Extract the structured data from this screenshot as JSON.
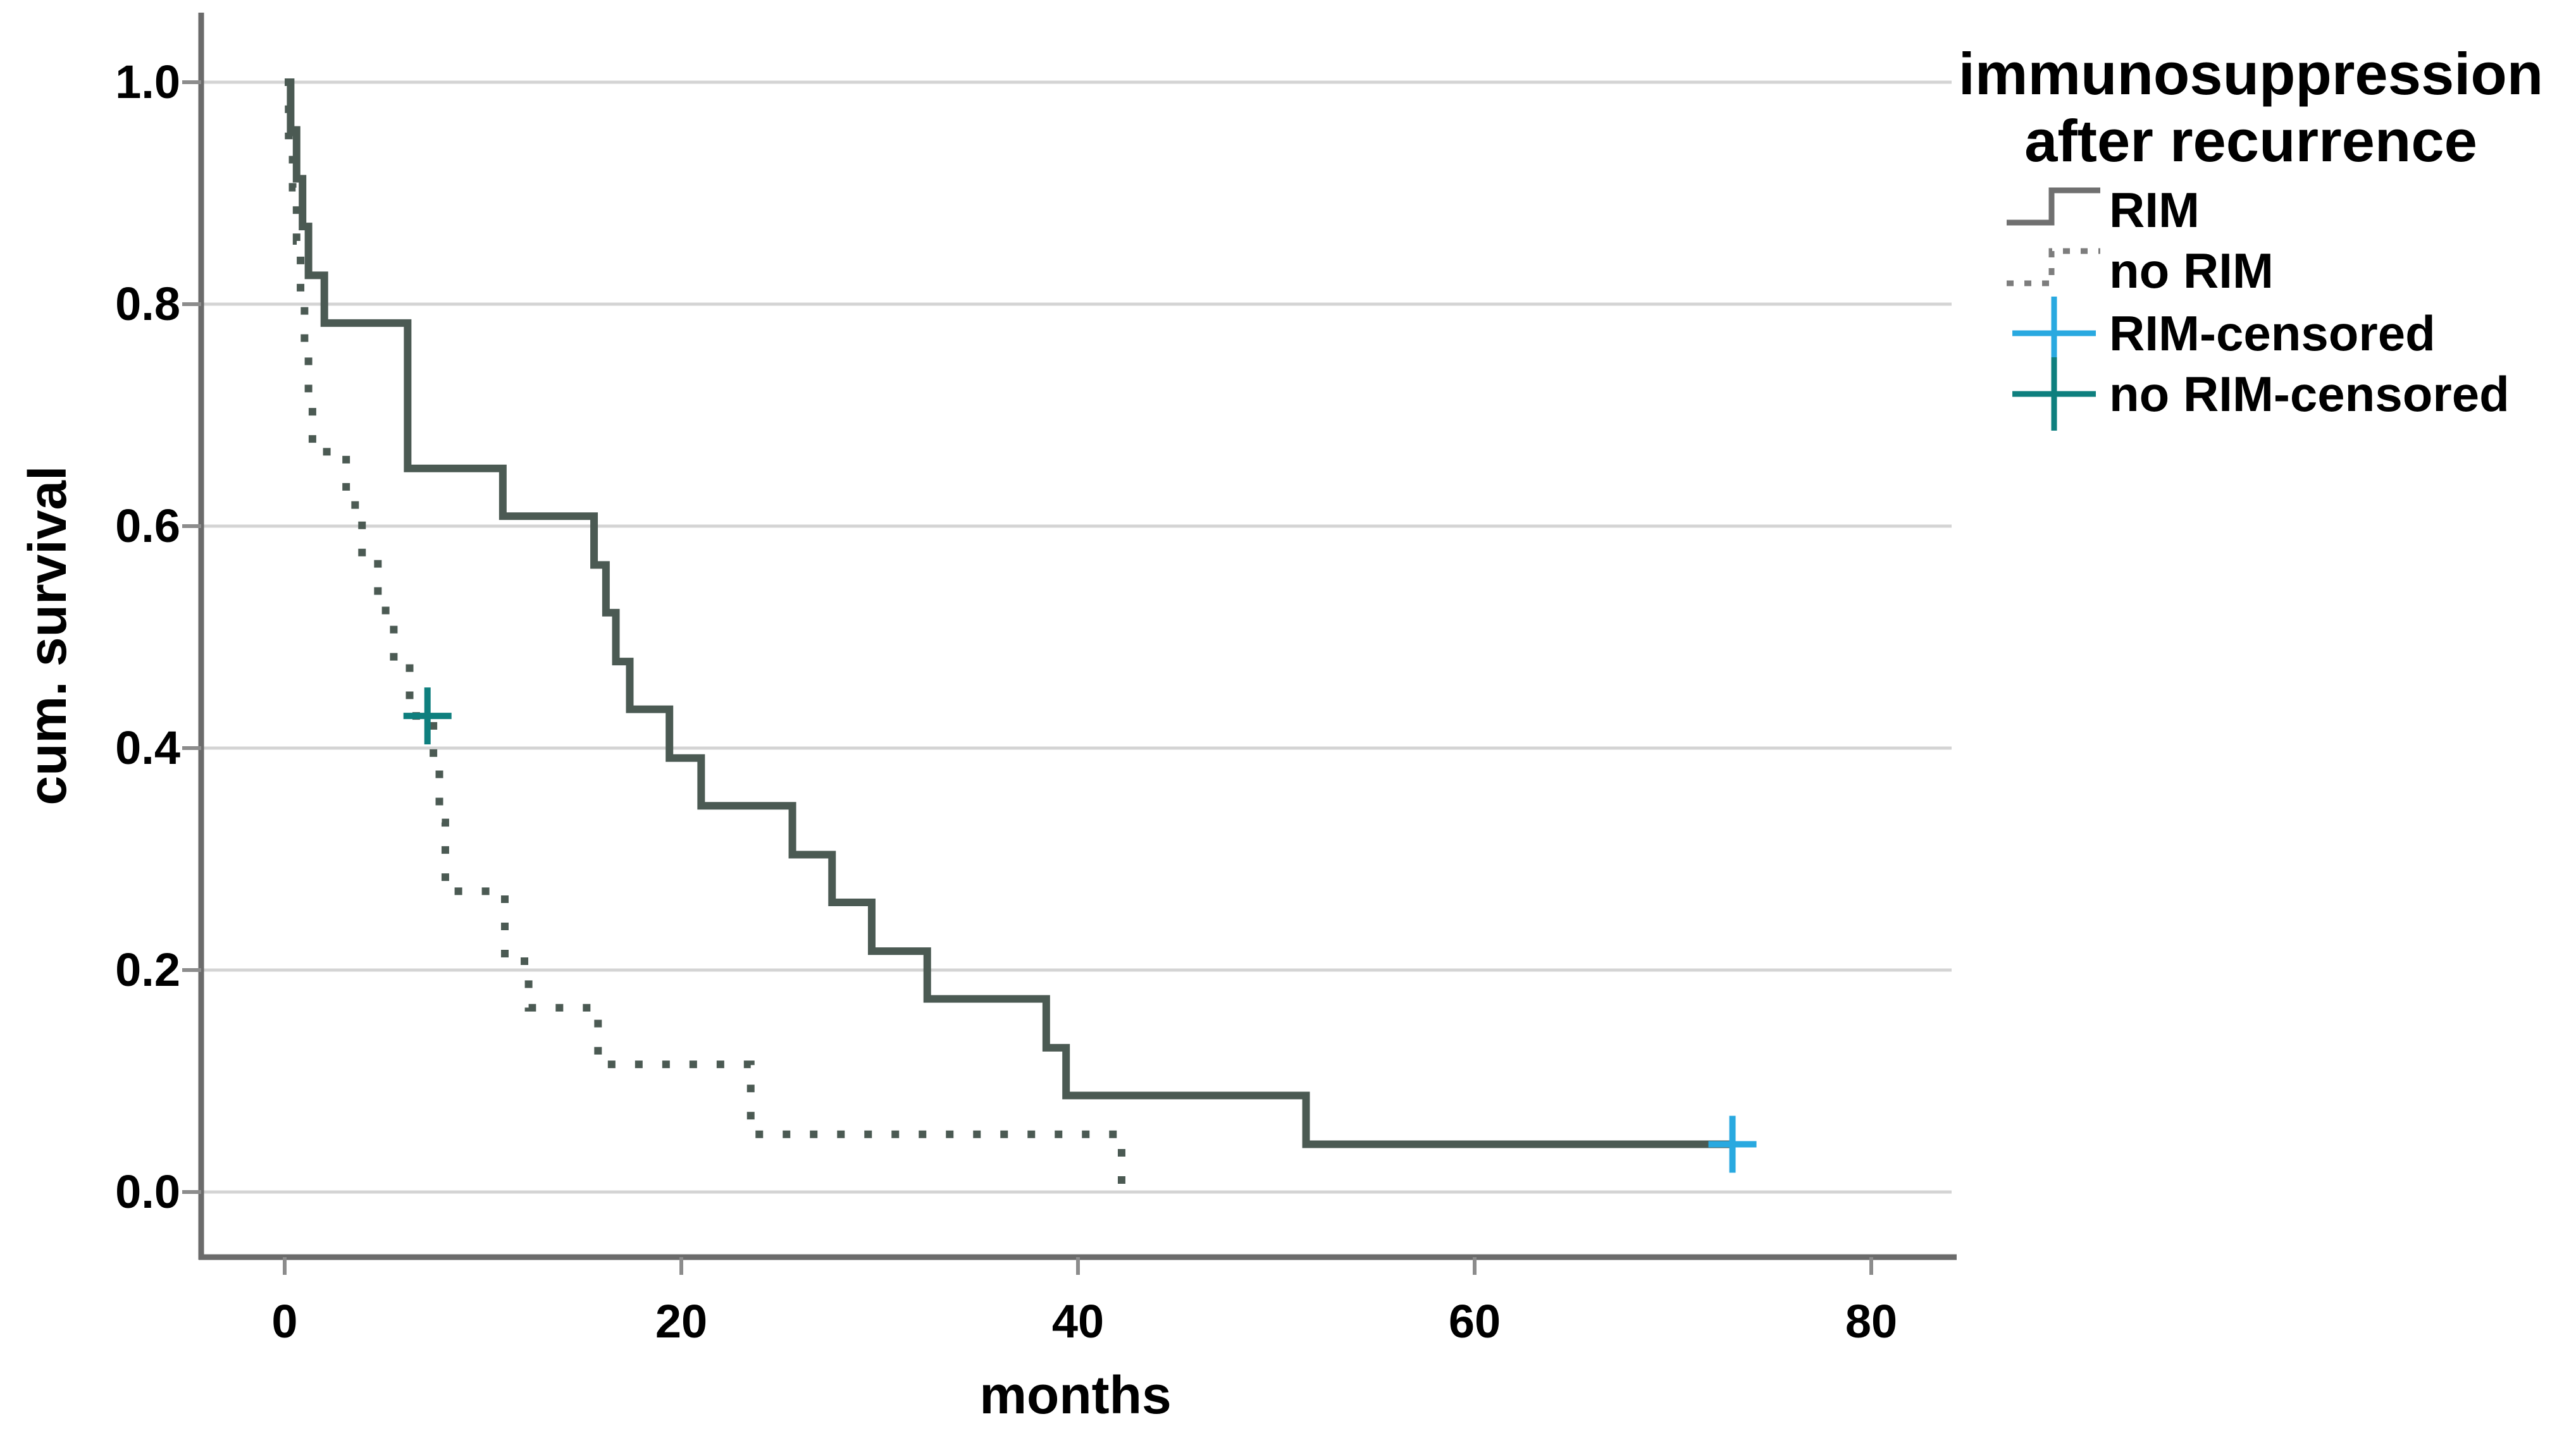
{
  "title": {
    "line1": "immunosuppression",
    "line2": "after recurrence"
  },
  "axes": {
    "y_label": "cum. survival",
    "x_label": "months",
    "y_tick_labels": [
      "1.0",
      "0.8",
      "0.6",
      "0.4",
      "0.2",
      "0.0"
    ],
    "x_tick_labels": [
      "0",
      "20",
      "40",
      "60",
      "80"
    ]
  },
  "legend": {
    "items": [
      {
        "label": "RIM",
        "type": "solid-step-line",
        "color": "#707070"
      },
      {
        "label": "no RIM",
        "type": "dotted-step-line",
        "color": "#7d7d7d"
      },
      {
        "label": "RIM-censored",
        "type": "plus-marker",
        "color": "#29a9e0"
      },
      {
        "label": "no RIM-censored",
        "type": "plus-marker",
        "color": "#0e7f7e"
      }
    ]
  },
  "colors": {
    "curve": "#4b5a53",
    "rim_censor_marker": "#29a9e0",
    "no_rim_censor_marker": "#0e7f7e",
    "gridline": "#d4d4d4",
    "axis_line": "#6b6b6b",
    "tick_stub": "#8c8c8c"
  },
  "chart_data": {
    "type": "line",
    "subtype": "kaplan-meier-step",
    "title": "immunosuppression after recurrence",
    "xlabel": "months",
    "ylabel": "cum. survival",
    "xlim": [
      -4.2,
      84.2
    ],
    "ylim": [
      0.0,
      1.0
    ],
    "x_ticks": [
      0,
      20,
      40,
      60,
      80
    ],
    "y_ticks": [
      1.0,
      0.8,
      0.6,
      0.4,
      0.2,
      0.0
    ],
    "grid": "horizontal-only",
    "legend_position": "top-right-outside",
    "series": [
      {
        "name": "RIM",
        "style": "solid",
        "points": [
          [
            0,
            1.0
          ],
          [
            0.3,
            0.957
          ],
          [
            0.6,
            0.913
          ],
          [
            0.9,
            0.87
          ],
          [
            1.2,
            0.826
          ],
          [
            2.0,
            0.783
          ],
          [
            6.2,
            0.652
          ],
          [
            11.0,
            0.609
          ],
          [
            15.6,
            0.565
          ],
          [
            16.2,
            0.522
          ],
          [
            16.7,
            0.478
          ],
          [
            17.4,
            0.435
          ],
          [
            19.4,
            0.391
          ],
          [
            21.0,
            0.348
          ],
          [
            25.6,
            0.304
          ],
          [
            27.6,
            0.261
          ],
          [
            29.6,
            0.217
          ],
          [
            32.4,
            0.174
          ],
          [
            38.4,
            0.13
          ],
          [
            39.4,
            0.087
          ],
          [
            51.5,
            0.043
          ],
          [
            73.0,
            0.043
          ]
        ],
        "censored": [
          [
            73.0,
            0.043
          ]
        ]
      },
      {
        "name": "no RIM",
        "style": "dotted",
        "points": [
          [
            0,
            1.0
          ],
          [
            0.2,
            0.952
          ],
          [
            0.4,
            0.905
          ],
          [
            0.6,
            0.857
          ],
          [
            0.8,
            0.81
          ],
          [
            1.0,
            0.762
          ],
          [
            1.2,
            0.714
          ],
          [
            1.4,
            0.667
          ],
          [
            3.1,
            0.619
          ],
          [
            3.9,
            0.571
          ],
          [
            4.7,
            0.524
          ],
          [
            5.5,
            0.476
          ],
          [
            6.3,
            0.429
          ],
          [
            7.5,
            0.381
          ],
          [
            7.8,
            0.333
          ],
          [
            8.1,
            0.271
          ],
          [
            11.1,
            0.208
          ],
          [
            12.3,
            0.166
          ],
          [
            15.8,
            0.115
          ],
          [
            23.5,
            0.052
          ],
          [
            42.2,
            0.005
          ]
        ],
        "censored": [
          [
            7.2,
            0.429
          ]
        ]
      }
    ]
  }
}
